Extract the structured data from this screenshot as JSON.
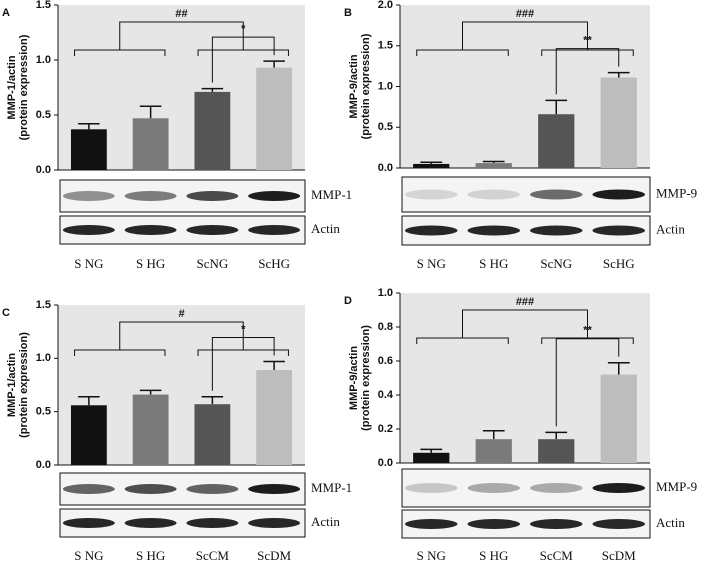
{
  "chart_data": [
    {
      "type": "bar",
      "panel": "A",
      "ylabel": [
        "MMP-1/actin",
        "(protein expression)"
      ],
      "categories": [
        "S NG",
        "S HG",
        "ScNG",
        "ScHG"
      ],
      "values": [
        0.37,
        0.47,
        0.71,
        0.93
      ],
      "errors": [
        0.05,
        0.11,
        0.03,
        0.06
      ],
      "colors": [
        "#111111",
        "#7a7a7a",
        "#555555",
        "#bdbdbd"
      ],
      "ylim": [
        0,
        1.5
      ],
      "yticks": [
        {
          "value": 0,
          "label": "0.0"
        },
        {
          "value": 0.5,
          "label": "0.5"
        },
        {
          "value": 1,
          "label": "1.0"
        },
        {
          "value": 1.5,
          "label": "1.5"
        }
      ],
      "annotations": [
        "##",
        "*"
      ],
      "blot_labels": [
        "MMP-1",
        "Actin"
      ]
    },
    {
      "type": "bar",
      "panel": "B",
      "ylabel": [
        "MMP-9/actin",
        "(protein expression)"
      ],
      "categories": [
        "S NG",
        "S HG",
        "ScNG",
        "ScHG"
      ],
      "values": [
        0.05,
        0.06,
        0.66,
        1.11
      ],
      "errors": [
        0.02,
        0.02,
        0.17,
        0.06
      ],
      "colors": [
        "#111111",
        "#7a7a7a",
        "#555555",
        "#bdbdbd"
      ],
      "ylim": [
        0,
        2
      ],
      "yticks": [
        {
          "value": 0,
          "label": "0.0"
        },
        {
          "value": 0.5,
          "label": "0.5"
        },
        {
          "value": 1,
          "label": "1.0"
        },
        {
          "value": 1.5,
          "label": "1.5"
        },
        {
          "value": 2,
          "label": "2.0"
        }
      ],
      "annotations": [
        "###",
        "**"
      ],
      "blot_labels": [
        "MMP-9",
        "Actin"
      ]
    },
    {
      "type": "bar",
      "panel": "C",
      "ylabel": [
        "MMP-1/actin",
        "(protein expression)"
      ],
      "categories": [
        "S NG",
        "S HG",
        "ScCM",
        "ScDM"
      ],
      "values": [
        0.56,
        0.66,
        0.57,
        0.89
      ],
      "errors": [
        0.08,
        0.04,
        0.07,
        0.08
      ],
      "colors": [
        "#111111",
        "#7a7a7a",
        "#555555",
        "#bdbdbd"
      ],
      "ylim": [
        0,
        1.5
      ],
      "yticks": [
        {
          "value": 0,
          "label": "0.0"
        },
        {
          "value": 0.5,
          "label": "0.5"
        },
        {
          "value": 1,
          "label": "1.0"
        },
        {
          "value": 1.5,
          "label": "1.5"
        }
      ],
      "annotations": [
        "#",
        "*"
      ],
      "blot_labels": [
        "MMP-1",
        "Actin"
      ]
    },
    {
      "type": "bar",
      "panel": "D",
      "ylabel": [
        "MMP-9/actin",
        "(protein expression)"
      ],
      "categories": [
        "S NG",
        "S HG",
        "ScCM",
        "ScDM"
      ],
      "values": [
        0.06,
        0.14,
        0.14,
        0.52
      ],
      "errors": [
        0.02,
        0.05,
        0.04,
        0.07
      ],
      "colors": [
        "#111111",
        "#7a7a7a",
        "#555555",
        "#bdbdbd"
      ],
      "ylim": [
        0,
        1
      ],
      "yticks": [
        {
          "value": 0,
          "label": "0.0"
        },
        {
          "value": 0.2,
          "label": "0.2"
        },
        {
          "value": 0.4,
          "label": "0.4"
        },
        {
          "value": 0.6,
          "label": "0.6"
        },
        {
          "value": 0.8,
          "label": "0.8"
        },
        {
          "value": 1,
          "label": "1.0"
        }
      ],
      "annotations": [
        "###",
        "**"
      ],
      "blot_labels": [
        "MMP-9",
        "Actin"
      ]
    }
  ]
}
